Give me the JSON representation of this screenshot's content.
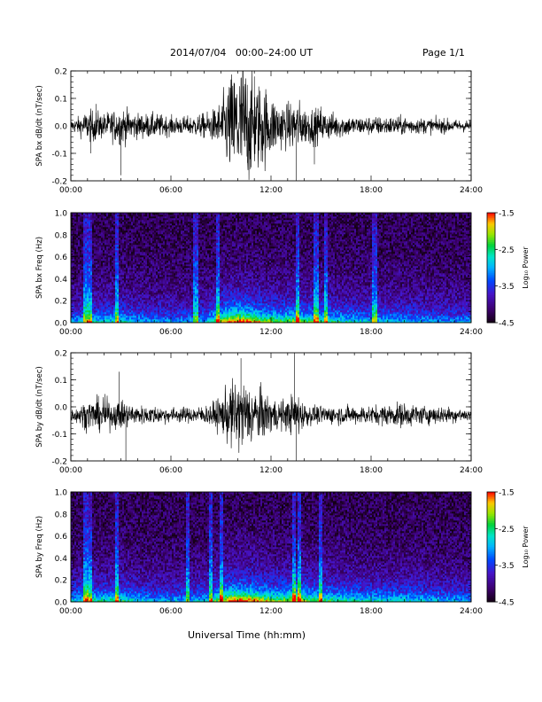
{
  "header": {
    "title": "2014/07/04   00:00–24:00 UT",
    "page": "Page 1/1"
  },
  "x_axis_title": "Universal Time (hh:mm)",
  "chart_data": [
    {
      "type": "line",
      "ylabel": "SPA bx dB/dt (nT/sec)",
      "x_ticks": [
        "00:00",
        "06:00",
        "12:00",
        "18:00",
        "24:00"
      ],
      "y_ticks": [
        "0.2",
        "0.1",
        "0.0",
        "-0.1",
        "-0.2"
      ],
      "xlim": [
        0,
        24
      ],
      "ylim": [
        -0.2,
        0.2
      ],
      "series": [
        {
          "color": "#000000",
          "envelope_hours": [
            0,
            0.5,
            1,
            1.5,
            2,
            2.5,
            3,
            3.5,
            4,
            5,
            6,
            7,
            8,
            8.5,
            9,
            9.5,
            10,
            10.5,
            11,
            11.5,
            12,
            12.5,
            13,
            13.5,
            14,
            14.5,
            15,
            16,
            17,
            18,
            19,
            20,
            21,
            22,
            23,
            24
          ],
          "envelope_amplitude": [
            0.02,
            0.03,
            0.05,
            0.05,
            0.04,
            0.05,
            0.06,
            0.05,
            0.04,
            0.04,
            0.03,
            0.03,
            0.04,
            0.05,
            0.08,
            0.16,
            0.2,
            0.2,
            0.15,
            0.14,
            0.1,
            0.08,
            0.07,
            0.09,
            0.06,
            0.06,
            0.05,
            0.04,
            0.03,
            0.03,
            0.03,
            0.03,
            0.025,
            0.025,
            0.02,
            0.02
          ],
          "spikes": [
            [
              1.2,
              -0.1
            ],
            [
              1.5,
              0.08
            ],
            [
              3.0,
              -0.18
            ],
            [
              10.3,
              0.2
            ],
            [
              11.0,
              0.18
            ],
            [
              13.5,
              -0.2
            ],
            [
              14.6,
              -0.14
            ],
            [
              15.0,
              0.07
            ]
          ]
        }
      ]
    },
    {
      "type": "heatmap",
      "ylabel": "SPA bx Freq (Hz)",
      "x_ticks": [
        "00:00",
        "06:00",
        "12:00",
        "18:00",
        "24:00"
      ],
      "y_ticks": [
        "1.0",
        "0.8",
        "0.6",
        "0.4",
        "0.2",
        "0.0"
      ],
      "xlim": [
        0,
        24
      ],
      "ylim": [
        0,
        1
      ],
      "colorbar": {
        "label": "Log₁₀ Power",
        "ticks": [
          "-1.5",
          "-2.5",
          "-3.5",
          "-4.5"
        ],
        "range": [
          -4.5,
          -1.5
        ]
      },
      "activity_hours": [
        0,
        1,
        2,
        3,
        4,
        5,
        6,
        7,
        8,
        8.5,
        9,
        9.5,
        10,
        10.5,
        11,
        11.5,
        12,
        12.5,
        13,
        13.5,
        14,
        15,
        16,
        17,
        18,
        19,
        20,
        21,
        22,
        23,
        24
      ],
      "activity": [
        0.3,
        0.45,
        0.4,
        0.5,
        0.35,
        0.3,
        0.3,
        0.3,
        0.35,
        0.55,
        0.75,
        0.95,
        1.0,
        0.95,
        0.85,
        0.75,
        0.7,
        0.65,
        0.65,
        0.75,
        0.6,
        0.55,
        0.5,
        0.45,
        0.4,
        0.4,
        0.35,
        0.35,
        0.3,
        0.3,
        0.3
      ],
      "vertical_streaks_hours": [
        0.9,
        1.2,
        2.8,
        7.5,
        8.8,
        13.6,
        14.7,
        15.3,
        18.2
      ]
    },
    {
      "type": "line",
      "ylabel": "SPA by dB/dt (nT/sec)",
      "x_ticks": [
        "00:00",
        "06:00",
        "12:00",
        "18:00",
        "24:00"
      ],
      "y_ticks": [
        "0.2",
        "0.1",
        "0.0",
        "-0.1",
        "-0.2"
      ],
      "xlim": [
        0,
        24
      ],
      "ylim": [
        -0.2,
        0.2
      ],
      "baseline": -0.03,
      "series": [
        {
          "color": "#000000",
          "envelope_hours": [
            0,
            0.5,
            1,
            1.5,
            2,
            2.5,
            3,
            3.5,
            4,
            5,
            6,
            7,
            8,
            8.5,
            9,
            9.5,
            10,
            10.5,
            11,
            11.5,
            12,
            12.5,
            13,
            13.5,
            14,
            14.5,
            15,
            16,
            17,
            18,
            19,
            20,
            21,
            22,
            23,
            24
          ],
          "envelope_amplitude": [
            0.02,
            0.03,
            0.05,
            0.05,
            0.06,
            0.04,
            0.05,
            0.04,
            0.03,
            0.03,
            0.025,
            0.025,
            0.03,
            0.04,
            0.06,
            0.1,
            0.12,
            0.11,
            0.09,
            0.08,
            0.06,
            0.05,
            0.05,
            0.08,
            0.04,
            0.03,
            0.03,
            0.03,
            0.03,
            0.03,
            0.035,
            0.04,
            0.03,
            0.03,
            0.025,
            0.02
          ],
          "spikes": [
            [
              2.9,
              0.13
            ],
            [
              3.3,
              -0.2
            ],
            [
              10.2,
              0.18
            ],
            [
              10.6,
              -0.1
            ],
            [
              13.4,
              0.2
            ],
            [
              13.5,
              -0.2
            ]
          ]
        }
      ]
    },
    {
      "type": "heatmap",
      "ylabel": "SPA by Freq (Hz)",
      "x_ticks": [
        "00:00",
        "06:00",
        "12:00",
        "18:00",
        "24:00"
      ],
      "y_ticks": [
        "1.0",
        "0.8",
        "0.6",
        "0.4",
        "0.2",
        "0.0"
      ],
      "xlim": [
        0,
        24
      ],
      "ylim": [
        0,
        1
      ],
      "colorbar": {
        "label": "Log₁₀ Power",
        "ticks": [
          "-1.5",
          "-2.5",
          "-3.5",
          "-4.5"
        ],
        "range": [
          -4.5,
          -1.5
        ]
      },
      "activity_hours": [
        0,
        1,
        2,
        3,
        4,
        5,
        6,
        7,
        8,
        8.5,
        9,
        9.5,
        10,
        10.5,
        11,
        11.5,
        12,
        12.5,
        13,
        13.5,
        14,
        15,
        16,
        17,
        18,
        19,
        20,
        21,
        22,
        23,
        24
      ],
      "activity": [
        0.35,
        0.55,
        0.5,
        0.55,
        0.4,
        0.35,
        0.35,
        0.35,
        0.4,
        0.55,
        0.75,
        0.95,
        1.0,
        0.95,
        0.9,
        0.8,
        0.75,
        0.7,
        0.75,
        0.85,
        0.7,
        0.6,
        0.55,
        0.5,
        0.45,
        0.45,
        0.45,
        0.4,
        0.35,
        0.35,
        0.3
      ],
      "vertical_streaks_hours": [
        0.9,
        1.2,
        2.8,
        7.0,
        8.4,
        9.0,
        13.4,
        13.7,
        15.0
      ]
    }
  ]
}
